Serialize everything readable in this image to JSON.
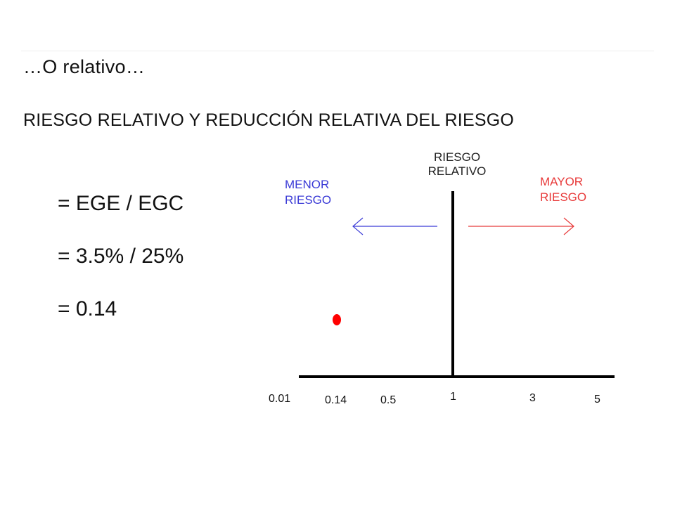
{
  "slide": {
    "title": "…O relativo…",
    "subtitle": "RIESGO RELATIVO Y REDUCCIÓN RELATIVA DEL RIESGO",
    "formulas": [
      "= EGE / EGC",
      "= 3.5% / 25%",
      "= 0.14"
    ]
  },
  "diagram": {
    "center_label_line1": "RIESGO",
    "center_label_line2": "RELATIVO",
    "left_label_line1": "MENOR",
    "left_label_line2": "RIESGO",
    "right_label_line1": "MAYOR",
    "right_label_line2": "RIESGO",
    "axis_ticks": [
      "0.01",
      "0.14",
      "0.5",
      "1",
      "3",
      "5"
    ],
    "point_value": 0.14,
    "colors": {
      "left": "#3a3ad6",
      "right": "#e83a3a",
      "point": "#ff0000",
      "axis": "#000000"
    }
  }
}
